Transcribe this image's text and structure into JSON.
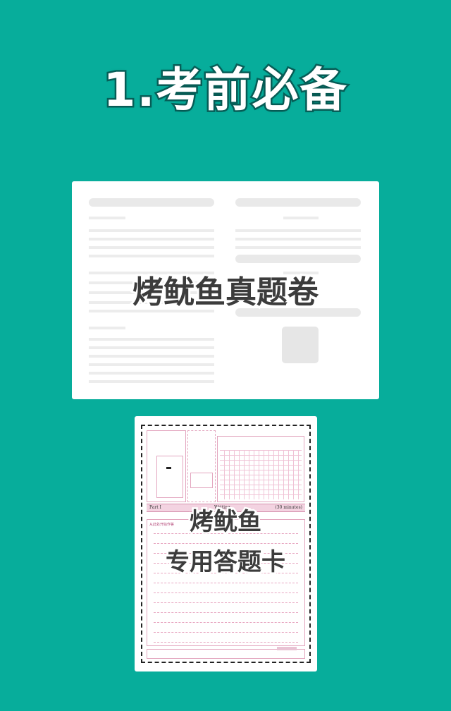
{
  "heading": "1.考前必备",
  "exam_paper": {
    "overlay_label": "烤鱿鱼真题卷"
  },
  "answer_sheet": {
    "overlay_line1": "烤鱿鱼",
    "overlay_line2": "专用答题卡",
    "part_label": "Part I",
    "part_title": "Writing",
    "part_time": "(30 minutes)",
    "start_note": "从此处开始作答"
  },
  "colors": {
    "background": "#07ad9b",
    "heading_outline": "#07615a",
    "overlay_text": "#3c3c3c",
    "sheet_pink": "#e3a6bf"
  }
}
